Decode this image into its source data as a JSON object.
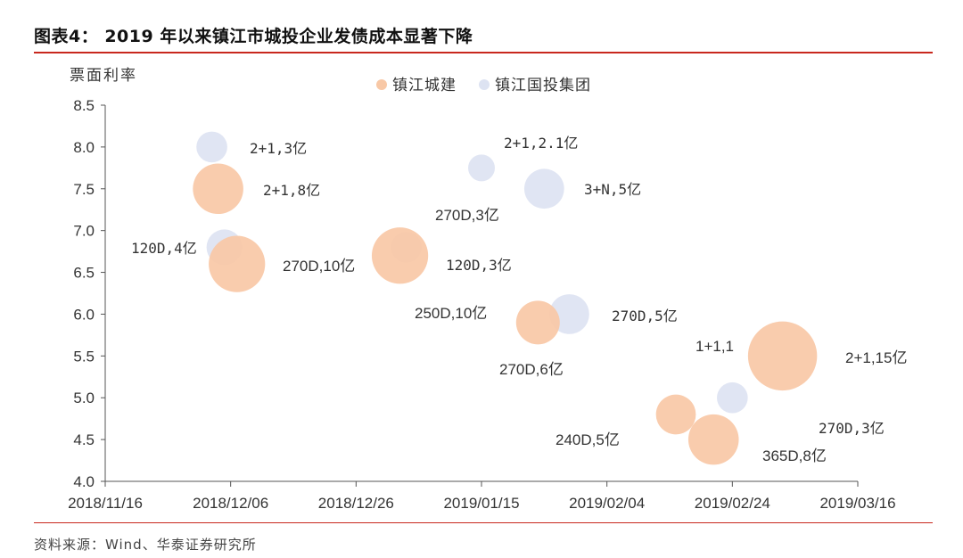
{
  "header": {
    "title": "图表4： 2019 年以来镇江市城投企业发债成本显著下降"
  },
  "footer": {
    "source": "资料来源：Wind、华泰证券研究所"
  },
  "colors": {
    "zjcj": "#f8c8a6",
    "zjgt": "#dde3f2",
    "rule": "#c8281e",
    "axis": "#555555"
  },
  "chart_data": {
    "type": "scatter",
    "ylabel": "票面利率",
    "ylim": [
      4.0,
      8.5
    ],
    "yticks": [
      "4.0",
      "4.5",
      "5.0",
      "5.5",
      "6.0",
      "6.5",
      "7.0",
      "7.5",
      "8.0",
      "8.5"
    ],
    "xlim": [
      "2018/11/16",
      "2019/03/16"
    ],
    "xticks": [
      "2018/11/16",
      "2018/12/06",
      "2018/12/26",
      "2019/01/15",
      "2019/02/04",
      "2019/02/24",
      "2019/03/16"
    ],
    "series": [
      {
        "name": "镇江城建",
        "color": "#f8c8a6",
        "points": [
          {
            "date": "2018/12/04",
            "y": 7.5,
            "size": 8,
            "label": "2+1,8亿"
          },
          {
            "date": "2018/12/07",
            "y": 6.6,
            "size": 10,
            "label": "270D,10亿"
          },
          {
            "date": "2018/12/33",
            "y": 6.7,
            "size": 10,
            "label": ""
          },
          {
            "date": "2019/01/24",
            "y": 5.9,
            "size": 6,
            "label": "270D,6亿"
          },
          {
            "date": "2019/02/15",
            "y": 4.8,
            "size": 5,
            "label": "240D,5亿"
          },
          {
            "date": "2019/02/21",
            "y": 4.5,
            "size": 8,
            "label": "365D,8亿"
          },
          {
            "date": "2019/03/04",
            "y": 5.5,
            "size": 15,
            "label": "2+1,15亿"
          }
        ]
      },
      {
        "name": "镇江国投集团",
        "color": "#dde3f2",
        "points": [
          {
            "date": "2018/12/03",
            "y": 8.0,
            "size": 3,
            "label": "2+1,3亿"
          },
          {
            "date": "2018/12/05",
            "y": 6.8,
            "size": 4,
            "label": "120D,4亿"
          },
          {
            "date": "2018/12/34",
            "y": 6.8,
            "size": 3,
            "label": "120D,3亿"
          },
          {
            "date": "2019/01/15",
            "y": 7.75,
            "size": 2.1,
            "label": "2+1,2.1亿"
          },
          {
            "date": "2019/01/25",
            "y": 7.5,
            "size": 5,
            "label": "3+N,5亿"
          },
          {
            "date": "2019/01/29",
            "y": 6.0,
            "size": 5,
            "label": "270D,5亿"
          },
          {
            "date": "2019/02/24",
            "y": 5.0,
            "size": 3,
            "label": "270D,3亿"
          }
        ]
      }
    ],
    "annotations": [
      {
        "text": "2+1,3亿"
      },
      {
        "text": "2+1,8亿"
      },
      {
        "text": "120D,4亿"
      },
      {
        "text": "270D,10亿"
      },
      {
        "text": "120D,3亿"
      },
      {
        "text": "2+1,2.1亿"
      },
      {
        "text": "3+N,5亿"
      },
      {
        "text": "270D,3亿"
      },
      {
        "text": "250D,10亿"
      },
      {
        "text": "270D,5亿"
      },
      {
        "text": "270D,6亿"
      },
      {
        "text": "1+1,1"
      },
      {
        "text": "2+1,15亿"
      },
      {
        "text": "270D,3亿"
      },
      {
        "text": "240D,5亿"
      },
      {
        "text": "365D,8亿"
      }
    ]
  }
}
